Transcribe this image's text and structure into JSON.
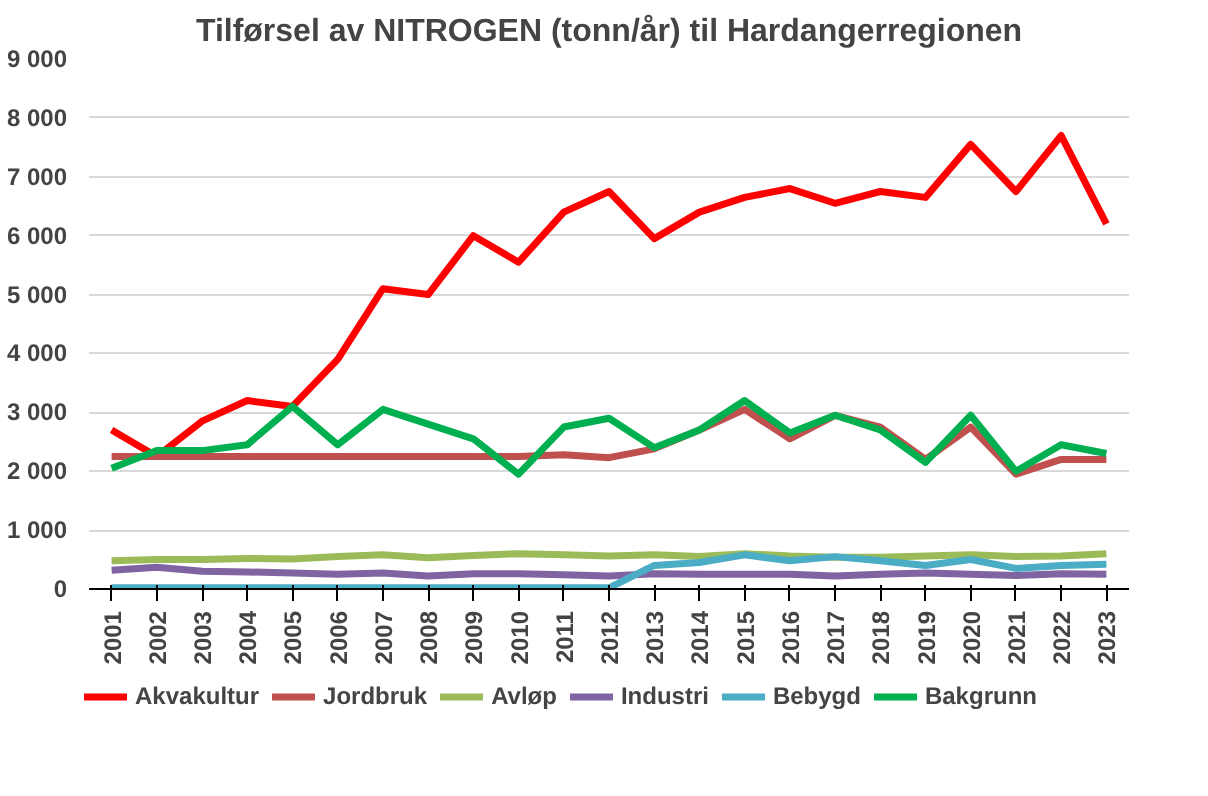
{
  "chart_data": {
    "type": "line",
    "title": "Tilførsel av NITROGEN (tonn/år) til Hardangerregionen",
    "categories": [
      "2001",
      "2002",
      "2003",
      "2004",
      "2005",
      "2006",
      "2007",
      "2008",
      "2009",
      "2010",
      "2011",
      "2012",
      "2013",
      "2014",
      "2015",
      "2016",
      "2017",
      "2018",
      "2019",
      "2020",
      "2021",
      "2022",
      "2023"
    ],
    "series": [
      {
        "name": "Akvakultur",
        "color": "#ff0000",
        "values": [
          2700,
          2250,
          2850,
          3200,
          3100,
          3900,
          5100,
          5000,
          6000,
          5550,
          6400,
          6750,
          5950,
          6400,
          6650,
          6800,
          6550,
          6750,
          6650,
          7550,
          6750,
          7700,
          6200
        ]
      },
      {
        "name": "Jordbruk",
        "color": "#c0504d",
        "values": [
          2250,
          2250,
          2250,
          2250,
          2250,
          2250,
          2250,
          2250,
          2250,
          2250,
          2280,
          2230,
          2380,
          2700,
          3050,
          2550,
          2950,
          2750,
          2200,
          2750,
          1950,
          2200,
          2200
        ]
      },
      {
        "name": "Avløp",
        "color": "#9bbb59",
        "values": [
          480,
          500,
          500,
          520,
          510,
          550,
          580,
          530,
          570,
          600,
          580,
          560,
          580,
          550,
          600,
          560,
          540,
          540,
          560,
          580,
          550,
          560,
          600
        ]
      },
      {
        "name": "Industri",
        "color": "#8064a2",
        "values": [
          320,
          370,
          300,
          290,
          270,
          250,
          270,
          220,
          260,
          260,
          240,
          220,
          260,
          250,
          250,
          250,
          220,
          250,
          270,
          250,
          230,
          260,
          250
        ]
      },
      {
        "name": "Bebygd",
        "color": "#4bacc6",
        "values": [
          20,
          20,
          20,
          20,
          20,
          20,
          20,
          20,
          20,
          20,
          20,
          20,
          400,
          450,
          580,
          480,
          550,
          480,
          400,
          500,
          350,
          400,
          420
        ]
      },
      {
        "name": "Bakgrunn",
        "color": "#00b050",
        "values": [
          2050,
          2350,
          2350,
          2450,
          3100,
          2450,
          3050,
          2800,
          2550,
          1950,
          2750,
          2900,
          2400,
          2700,
          3200,
          2650,
          2950,
          2700,
          2150,
          2950,
          2000,
          2450,
          2300
        ]
      }
    ],
    "ylim": [
      0,
      9000
    ],
    "yticks": [
      {
        "value": 0,
        "label": "0"
      },
      {
        "value": 1000,
        "label": "1 000"
      },
      {
        "value": 2000,
        "label": "2 000"
      },
      {
        "value": 3000,
        "label": "3 000"
      },
      {
        "value": 4000,
        "label": "4 000"
      },
      {
        "value": 5000,
        "label": "5 000"
      },
      {
        "value": 6000,
        "label": "6 000"
      },
      {
        "value": 7000,
        "label": "7 000"
      },
      {
        "value": 8000,
        "label": "8 000"
      },
      {
        "value": 9000,
        "label": "9 000"
      }
    ],
    "grid": "y",
    "legend": "bottom",
    "line_style": "solid",
    "marker": "none"
  }
}
